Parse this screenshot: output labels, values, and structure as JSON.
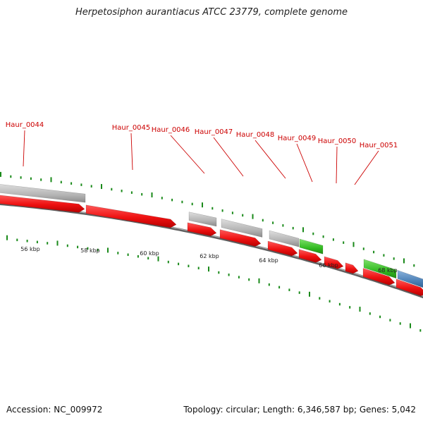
{
  "title": "Herpetosiphon aurantiacus ATCC 23779, complete genome",
  "footer": {
    "accession": "Accession: NC_009972",
    "stats": "Topology: circular; Length: 6,346,587 bp; Genes: 5,042"
  },
  "colors": {
    "backbone": "#8a8a8a",
    "cds": "#ee1111",
    "gene_gray": "#b4b4b4",
    "gene_green": "#33bb22",
    "gene_blue": "#4a7fb5",
    "tick": "#1a8a1a",
    "label": "#cc0000",
    "leader": "#cc0000"
  },
  "gene_labels": [
    "Haur_0044",
    "Haur_0045",
    "Haur_0046",
    "Haur_0047",
    "Haur_0048",
    "Haur_0049",
    "Haur_0050",
    "Haur_0051"
  ],
  "scale_labels": [
    "56 kbp",
    "58 kbp",
    "60 kbp",
    "62 kbp",
    "64 kbp",
    "66 kbp",
    "68 kbp"
  ]
}
